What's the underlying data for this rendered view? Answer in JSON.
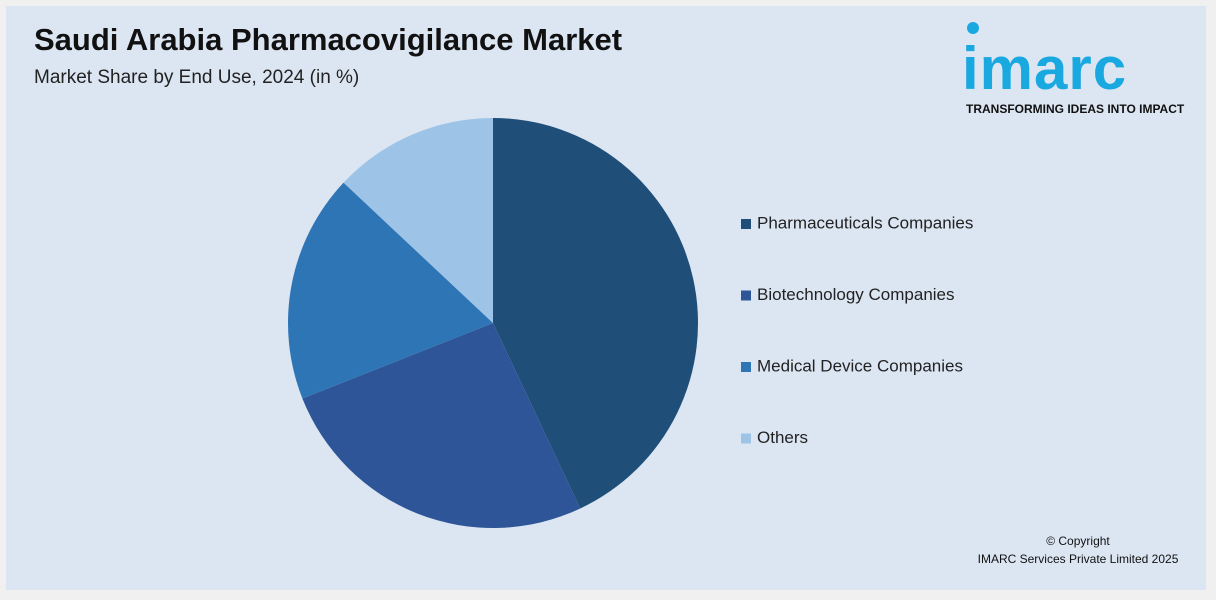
{
  "chart_data": {
    "type": "pie",
    "title": "Saudi Arabia Pharmacovigilance Market",
    "subtitle": "Market Share by End Use, 2024 (in %)",
    "categories": [
      "Pharmaceuticals Companies",
      "Biotechnology Companies",
      "Medical Device Companies",
      "Others"
    ],
    "values": [
      43,
      26,
      18,
      13
    ],
    "colors": [
      "#1f4e79",
      "#2e5597",
      "#2e75b6",
      "#9dc3e6"
    ]
  },
  "logo": {
    "name": "imarc",
    "tagline": "TRANSFORMING IDEAS INTO IMPACT"
  },
  "footer": {
    "copyright": "© Copyright",
    "owner": "IMARC Services Private Limited 2025"
  }
}
